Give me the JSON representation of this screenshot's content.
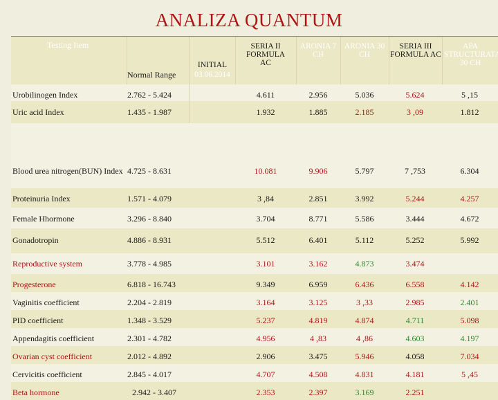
{
  "title": "ANALIZA QUANTUM",
  "headers": {
    "item": "Testing Item",
    "range": "Normal Range",
    "initial": "INITIAL",
    "initial_date": "03.06.2014",
    "c1": "SERIA II FORMULA AC",
    "c2": "ARONIA 7 CH",
    "c3": "ARONIA 30 CH",
    "c4": "SERIA III FORMULA AC",
    "c5": "APA STRUCTURATA 30 CH"
  },
  "colors": {
    "title": "#b11414",
    "dark": "#1a1a1a",
    "red": "#b01414",
    "green": "#2a8a2a",
    "band_light": "#ebe8c6",
    "band_pale": "#f2f1e2",
    "header_bg": "#8c2a2a"
  },
  "rows": [
    {
      "name": "Urobilinogen Index",
      "name_color": "dark",
      "range": "2.762 - 5.424",
      "vals": [
        [
          "4.611",
          "dark"
        ],
        [
          "2.956",
          "dark"
        ],
        [
          "5.036",
          "dark"
        ],
        [
          "5.624",
          "red"
        ],
        [
          "5 ,15",
          "dark"
        ]
      ]
    },
    {
      "name": "Uric acid Index",
      "name_color": "dark",
      "range": "1.435 - 1.987",
      "vals": [
        [
          "1.932",
          "dark"
        ],
        [
          "1.885",
          "dark"
        ],
        [
          "2.185",
          "red"
        ],
        [
          "3 ,09",
          "red"
        ],
        [
          "1.812",
          "dark"
        ]
      ]
    },
    {
      "name": "Blood urea nitrogen(BUN) Index",
      "name_color": "dark",
      "range": "4.725 - 8.631",
      "vals": [
        [
          "10.081",
          "red"
        ],
        [
          "9.906",
          "red"
        ],
        [
          "5.797",
          "dark"
        ],
        [
          "7 ,753",
          "dark"
        ],
        [
          "6.304",
          "dark"
        ]
      ]
    },
    {
      "name": "Proteinuria Index",
      "name_color": "dark",
      "range": "1.571 - 4.079",
      "vals": [
        [
          "3 ,84",
          "dark"
        ],
        [
          "2.851",
          "dark"
        ],
        [
          "3.992",
          "dark"
        ],
        [
          "5.244",
          "red"
        ],
        [
          "4.257",
          "red"
        ]
      ]
    },
    {
      "name": "Female Hhormone",
      "name_color": "dark",
      "range": "3.296 - 8.840",
      "vals": [
        [
          "3.704",
          "dark"
        ],
        [
          "8.771",
          "dark"
        ],
        [
          "5.586",
          "dark"
        ],
        [
          "3.444",
          "dark"
        ],
        [
          "4.672",
          "dark"
        ]
      ]
    },
    {
      "name": "Gonadotropin",
      "name_color": "dark",
      "range": "4.886 - 8.931",
      "vals": [
        [
          "5.512",
          "dark"
        ],
        [
          "6.401",
          "dark"
        ],
        [
          "5.112",
          "dark"
        ],
        [
          "5.252",
          "dark"
        ],
        [
          "5.992",
          "dark"
        ]
      ]
    },
    {
      "name": "Reproductive system",
      "name_color": "red",
      "range": "3.778 - 4.985",
      "vals": [
        [
          "3.101",
          "red"
        ],
        [
          "3.162",
          "red"
        ],
        [
          "4.873",
          "green"
        ],
        [
          "3.474",
          "red"
        ],
        [
          "",
          ""
        ]
      ]
    },
    {
      "name": "Progesterone",
      "name_color": "red",
      "range": "6.818 - 16.743",
      "vals": [
        [
          "9.349",
          "dark"
        ],
        [
          "6.959",
          "dark"
        ],
        [
          "6.436",
          "red"
        ],
        [
          "6.558",
          "red"
        ],
        [
          "4.142",
          "red"
        ]
      ]
    },
    {
      "name": "Vaginitis coefficient",
      "name_color": "dark",
      "range": "2.204 - 2.819",
      "vals": [
        [
          "3.164",
          "red"
        ],
        [
          "3.125",
          "red"
        ],
        [
          "3 ,33",
          "red"
        ],
        [
          "2.985",
          "red"
        ],
        [
          "2.401",
          "green"
        ]
      ]
    },
    {
      "name": "PID coefficient",
      "name_color": "dark",
      "range": "1.348 - 3.529",
      "vals": [
        [
          "5.237",
          "red"
        ],
        [
          "4.819",
          "red"
        ],
        [
          "4.874",
          "red"
        ],
        [
          "4.711",
          "green"
        ],
        [
          "5.098",
          "red"
        ]
      ]
    },
    {
      "name": "Appendagitis coefficient",
      "name_color": "dark",
      "range": "2.301 - 4.782",
      "vals": [
        [
          "4.956",
          "red"
        ],
        [
          "4 ,83",
          "red"
        ],
        [
          "4 ,86",
          "red"
        ],
        [
          "4.603",
          "green"
        ],
        [
          "4.197",
          "green"
        ]
      ]
    },
    {
      "name": "Ovarian cyst coefficient",
      "name_color": "red",
      "range": "2.012 - 4.892",
      "vals": [
        [
          "2.906",
          "dark"
        ],
        [
          "3.475",
          "dark"
        ],
        [
          "5.946",
          "red"
        ],
        [
          "4.058",
          "dark"
        ],
        [
          "7.034",
          "red"
        ]
      ]
    },
    {
      "name": "Cervicitis coefficient",
      "name_color": "dark",
      "range": "2.845 - 4.017",
      "vals": [
        [
          "4.707",
          "red"
        ],
        [
          "4.508",
          "red"
        ],
        [
          "4.831",
          "red"
        ],
        [
          "4.181",
          "red"
        ],
        [
          "5 ,45",
          "red"
        ]
      ]
    },
    {
      "name": "Beta hormone",
      "name_color": "red",
      "range": "2.942 - 3.407",
      "vals": [
        [
          "2.353",
          "red"
        ],
        [
          "2.397",
          "red"
        ],
        [
          "3.169",
          "green"
        ],
        [
          "2.251",
          "red"
        ],
        [
          "",
          ""
        ]
      ]
    }
  ]
}
